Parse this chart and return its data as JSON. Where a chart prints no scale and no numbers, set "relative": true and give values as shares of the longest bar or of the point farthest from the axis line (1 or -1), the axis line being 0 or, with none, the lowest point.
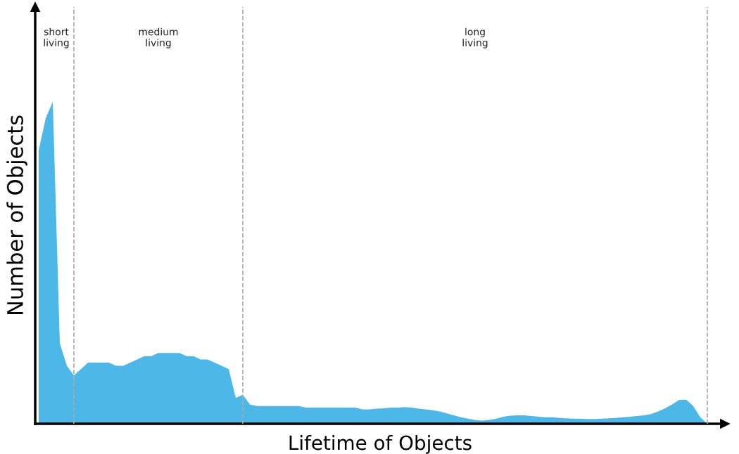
{
  "chart_data": {
    "type": "area",
    "relative": true,
    "xlabel": "Lifetime of Objects",
    "ylabel": "Number of Objects",
    "categories": [
      null,
      null,
      null,
      null,
      null,
      null,
      null,
      null,
      null,
      null,
      null,
      null,
      null,
      null,
      null,
      null,
      null,
      null,
      null,
      null,
      null,
      null,
      null,
      null,
      null,
      null,
      null,
      null,
      null,
      null,
      null,
      null,
      null,
      null,
      null,
      null,
      null,
      null,
      null,
      null,
      null,
      null,
      null,
      null,
      null,
      null,
      null,
      null,
      null,
      null,
      null,
      null,
      null,
      null,
      null,
      null,
      null,
      null,
      null,
      null,
      null,
      null,
      null,
      null,
      null,
      null,
      null,
      null,
      null,
      null,
      null,
      null,
      null,
      null,
      null,
      null,
      null,
      null,
      null,
      null,
      null,
      null,
      null,
      null,
      null,
      null,
      null,
      null,
      null,
      null,
      null,
      null,
      null,
      null,
      null,
      null
    ],
    "series": [
      {
        "color": "#4db8e8",
        "values": [
          0.85,
          0.95,
          1.0,
          0.25,
          0.18,
          0.15,
          0.17,
          0.19,
          0.19,
          0.19,
          0.19,
          0.18,
          0.18,
          0.19,
          0.2,
          0.21,
          0.21,
          0.22,
          0.22,
          0.22,
          0.22,
          0.21,
          0.21,
          0.2,
          0.2,
          0.19,
          0.18,
          0.17,
          0.08,
          0.09,
          0.06,
          0.055,
          0.055,
          0.055,
          0.055,
          0.055,
          0.055,
          0.055,
          0.05,
          0.05,
          0.05,
          0.05,
          0.05,
          0.05,
          0.05,
          0.05,
          0.045,
          0.045,
          0.047,
          0.048,
          0.05,
          0.05,
          0.052,
          0.05,
          0.047,
          0.045,
          0.042,
          0.038,
          0.032,
          0.026,
          0.02,
          0.016,
          0.012,
          0.01,
          0.012,
          0.016,
          0.022,
          0.025,
          0.026,
          0.026,
          0.024,
          0.022,
          0.02,
          0.02,
          0.018,
          0.017,
          0.016,
          0.016,
          0.015,
          0.015,
          0.016,
          0.017,
          0.018,
          0.02,
          0.022,
          0.024,
          0.026,
          0.03,
          0.038,
          0.048,
          0.06,
          0.074,
          0.075,
          0.055,
          0.02,
          0
        ]
      }
    ],
    "annotations": [
      "short\nliving",
      "medium\nliving",
      "long\nliving"
    ],
    "grid": "x"
  }
}
